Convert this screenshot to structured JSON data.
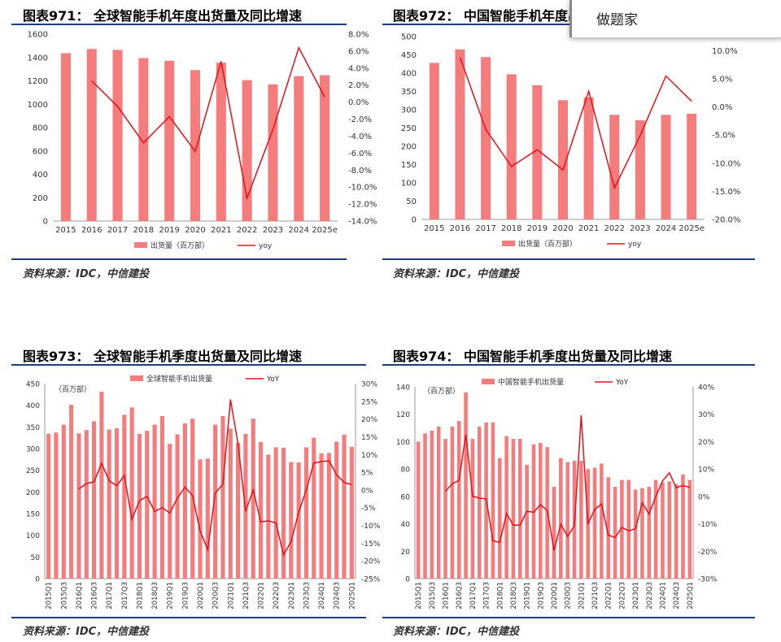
{
  "popup": {
    "text": "做题家"
  },
  "panels": [
    {
      "title": "图表971：  全球智能手机年度出货量及同比增速",
      "source": "资料来源：IDC，中信建投"
    },
    {
      "title": "图表972：  中国智能手机年度出货量及同比增速",
      "source": "资料来源：IDC，中信建投"
    },
    {
      "title": "图表973：  全球智能手机季度出货量及同比增速",
      "source": "资料来源：IDC，中信建投"
    },
    {
      "title": "图表974：  中国智能手机季度出货量及同比增速",
      "source": "资料来源：IDC，中信建投"
    }
  ],
  "colors": {
    "bar": "#f47c7c",
    "line": "#e8101a",
    "rule": "#1f3d7a"
  },
  "chart_data": [
    {
      "type": "bar",
      "categories": [
        "2015",
        "2016",
        "2017",
        "2018",
        "2019",
        "2020",
        "2021",
        "2022",
        "2023",
        "2024",
        "2025e"
      ],
      "series": [
        {
          "name": "出货量（百万部）",
          "type": "bar",
          "axis": "left",
          "values": [
            1437,
            1473,
            1465,
            1395,
            1372,
            1292,
            1355,
            1206,
            1170,
            1240,
            1248
          ]
        },
        {
          "name": "yoy",
          "type": "line",
          "axis": "right",
          "values": [
            null,
            2.5,
            -0.5,
            -4.8,
            -1.7,
            -5.8,
            4.8,
            -11.3,
            -3.2,
            6.4,
            0.6
          ]
        }
      ],
      "ylim_left": [
        0,
        1600
      ],
      "yticks_left": [
        "0",
        "200",
        "400",
        "600",
        "800",
        "1000",
        "1200",
        "1400",
        "1600"
      ],
      "ylim_right": [
        -14,
        8
      ],
      "yticks_right": [
        "-14.0%",
        "-12.0%",
        "-10.0%",
        "-8.0%",
        "-6.0%",
        "-4.0%",
        "-2.0%",
        "0.0%",
        "2.0%",
        "4.0%",
        "6.0%",
        "8.0%"
      ],
      "legend": "bottom",
      "grid": false
    },
    {
      "type": "bar",
      "categories": [
        "2015",
        "2016",
        "2017",
        "2018",
        "2019",
        "2020",
        "2021",
        "2022",
        "2023",
        "2024",
        "2025e"
      ],
      "series": [
        {
          "name": "出货量（百万部）",
          "type": "bar",
          "axis": "left",
          "values": [
            428,
            465,
            444,
            397,
            367,
            326,
            334,
            286,
            271,
            286,
            289
          ]
        },
        {
          "name": "yoy",
          "type": "line",
          "axis": "right",
          "values": [
            null,
            8.8,
            -4.0,
            -10.6,
            -7.6,
            -11.2,
            2.8,
            -14.4,
            -5.1,
            5.5,
            1.0
          ]
        }
      ],
      "ylim_left": [
        0,
        500
      ],
      "yticks_left": [
        "0",
        "50",
        "100",
        "150",
        "200",
        "250",
        "300",
        "350",
        "400",
        "450",
        "500"
      ],
      "ylim_right": [
        -20,
        12.5
      ],
      "yticks_right": [
        "-20.0%",
        "-15.0%",
        "-10.0%",
        "-5.0%",
        "0.0%",
        "5.0%",
        "10.0%"
      ],
      "legend": "bottom",
      "grid": false
    },
    {
      "type": "bar",
      "unit_note": "（百万部）",
      "categories": [
        "2015Q1",
        "2015Q2",
        "2015Q3",
        "2015Q4",
        "2016Q1",
        "2016Q2",
        "2016Q3",
        "2016Q4",
        "2017Q1",
        "2017Q2",
        "2017Q3",
        "2017Q4",
        "2018Q1",
        "2018Q2",
        "2018Q3",
        "2018Q4",
        "2019Q1",
        "2019Q2",
        "2019Q3",
        "2019Q4",
        "2020Q1",
        "2020Q2",
        "2020Q3",
        "2020Q4",
        "2021Q1",
        "2021Q2",
        "2021Q3",
        "2021Q4",
        "2022Q1",
        "2022Q2",
        "2022Q3",
        "2022Q4",
        "2023Q1",
        "2023Q2",
        "2023Q3",
        "2023Q4",
        "2024Q1",
        "2024Q2",
        "2024Q3",
        "2024Q4",
        "2025Q1"
      ],
      "xticklabels": [
        "2015Q1",
        "2015Q3",
        "2016Q1",
        "2016Q3",
        "2017Q1",
        "2017Q3",
        "2018Q1",
        "2018Q3",
        "2019Q1",
        "2019Q3",
        "2020Q1",
        "2020Q3",
        "2021Q1",
        "2021Q3",
        "2022Q1",
        "2022Q3",
        "2023Q1",
        "2023Q3",
        "2024Q1",
        "2024Q3",
        "2025Q1"
      ],
      "series": [
        {
          "name": "全球智能手机出货量",
          "type": "bar",
          "axis": "left",
          "values": [
            334,
            337,
            355,
            401,
            335,
            343,
            363,
            431,
            344,
            347,
            378,
            395,
            334,
            341,
            355,
            375,
            311,
            333,
            358,
            369,
            275,
            277,
            355,
            375,
            346,
            313,
            334,
            369,
            315,
            286,
            303,
            302,
            269,
            268,
            303,
            325,
            289,
            290,
            316,
            332,
            304
          ]
        },
        {
          "name": "YoY",
          "type": "line",
          "axis": "right",
          "values": [
            null,
            null,
            null,
            null,
            0.3,
            1.8,
            2.3,
            7.5,
            2.6,
            1.2,
            4.1,
            -8.3,
            -3.0,
            -1.8,
            -6.1,
            -5.0,
            -6.5,
            -2.3,
            0.8,
            -1.6,
            -11.6,
            -16.8,
            -0.8,
            1.6,
            25.5,
            13.0,
            -6.0,
            0.0,
            -9.0,
            -8.7,
            -9.3,
            -18.3,
            -14.6,
            -6.3,
            0.0,
            7.6,
            8.0,
            8.2,
            4.3,
            2.1,
            1.5
          ]
        }
      ],
      "ylim_left": [
        0,
        450
      ],
      "yticks_left": [
        "0",
        "50",
        "100",
        "150",
        "200",
        "250",
        "300",
        "350",
        "400",
        "450"
      ],
      "ylim_right": [
        -25,
        30
      ],
      "yticks_right": [
        "-25%",
        "-20%",
        "-15%",
        "-10%",
        "-5%",
        "0%",
        "5%",
        "10%",
        "15%",
        "20%",
        "25%",
        "30%"
      ],
      "legend": "top",
      "grid": false
    },
    {
      "type": "bar",
      "unit_note": "（百万部）",
      "categories": [
        "2015Q1",
        "2015Q2",
        "2015Q3",
        "2015Q4",
        "2016Q1",
        "2016Q2",
        "2016Q3",
        "2016Q4",
        "2017Q1",
        "2017Q2",
        "2017Q3",
        "2017Q4",
        "2018Q1",
        "2018Q2",
        "2018Q3",
        "2018Q4",
        "2019Q1",
        "2019Q2",
        "2019Q3",
        "2019Q4",
        "2020Q1",
        "2020Q2",
        "2020Q3",
        "2020Q4",
        "2021Q1",
        "2021Q2",
        "2021Q3",
        "2021Q4",
        "2022Q1",
        "2022Q2",
        "2022Q3",
        "2022Q4",
        "2023Q1",
        "2023Q2",
        "2023Q3",
        "2023Q4",
        "2024Q1",
        "2024Q2",
        "2024Q3",
        "2024Q4",
        "2025Q1"
      ],
      "xticklabels": [
        "2015Q1",
        "2015Q3",
        "2016Q1",
        "2016Q3",
        "2017Q1",
        "2017Q3",
        "2018Q1",
        "2018Q3",
        "2019Q1",
        "2019Q3",
        "2020Q1",
        "2020Q3",
        "2021Q1",
        "2021Q3",
        "2022Q1",
        "2022Q3",
        "2023Q1",
        "2023Q3",
        "2024Q1",
        "2024Q3",
        "2025Q1"
      ],
      "series": [
        {
          "name": "中国智能手机出货量",
          "type": "bar",
          "axis": "left",
          "values": [
            100,
            106,
            108,
            111,
            102,
            111,
            115,
            136,
            102,
            111,
            114,
            114,
            88,
            104,
            102,
            102,
            83,
            98,
            99,
            96,
            67,
            88,
            85,
            86,
            86,
            80,
            81,
            84,
            74,
            67,
            72,
            72,
            65,
            66,
            67,
            72,
            70,
            71,
            69,
            76,
            72
          ]
        },
        {
          "name": "YoY",
          "type": "line",
          "axis": "right",
          "values": [
            null,
            null,
            null,
            null,
            1.9,
            4.6,
            5.9,
            22.6,
            0.1,
            -0.6,
            -0.9,
            -16.2,
            -16.8,
            -6.3,
            -10.5,
            -10.5,
            -5.4,
            -5.8,
            -3.0,
            -5.1,
            -19.7,
            -10.1,
            -14.6,
            -10.7,
            29.6,
            -9.9,
            -4.8,
            -2.7,
            -14.1,
            -15.0,
            -11.3,
            -12.6,
            -11.8,
            -2.4,
            -6.4,
            0.0,
            5.7,
            8.6,
            3.2,
            4.0,
            3.3
          ]
        }
      ],
      "ylim_left": [
        0,
        140
      ],
      "yticks_left": [
        "0",
        "20",
        "40",
        "60",
        "80",
        "100",
        "120",
        "140"
      ],
      "ylim_right": [
        -30,
        40
      ],
      "yticks_right": [
        "-30%",
        "-20%",
        "-10%",
        "0%",
        "10%",
        "20%",
        "30%",
        "40%"
      ],
      "legend": "top",
      "grid": false
    }
  ]
}
